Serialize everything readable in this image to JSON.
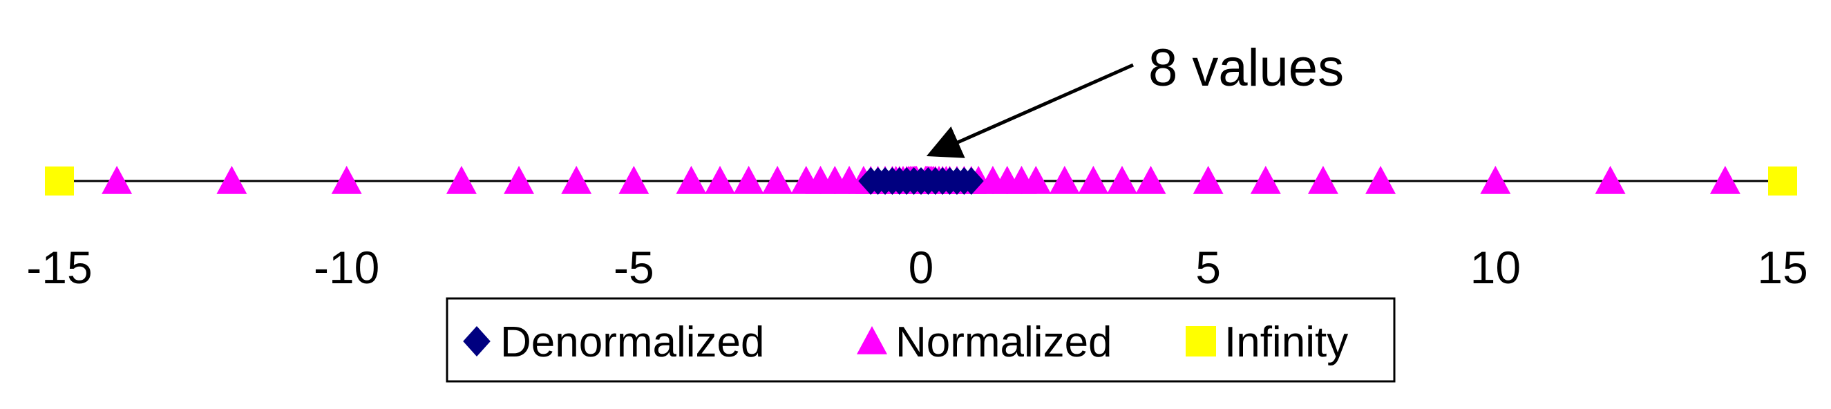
{
  "chart_data": {
    "type": "scatter",
    "xlim": [
      -15,
      15
    ],
    "ticks": [
      "-15",
      "-10",
      "-5",
      "0",
      "5",
      "10",
      "15"
    ],
    "annotation": {
      "text": "8 values",
      "target_x": 0
    },
    "legend": {
      "placement": "bottom-center"
    },
    "series": [
      {
        "name": "Denormalized",
        "marker": "diamond",
        "color": "#000080",
        "x": [
          -0.875,
          -0.75,
          -0.625,
          -0.5,
          -0.375,
          -0.25,
          -0.125,
          0,
          0.125,
          0.25,
          0.375,
          0.5,
          0.625,
          0.75,
          0.875
        ]
      },
      {
        "name": "Normalized",
        "marker": "triangle",
        "color": "#ff00ff",
        "x": [
          -14,
          -12,
          -10,
          -8,
          -7,
          -6,
          -5,
          -4,
          -3.5,
          -3,
          -2.5,
          -2,
          -1.75,
          -1.5,
          -1.25,
          -1,
          -0.875,
          -0.75,
          -0.625,
          -0.5,
          -0.4375,
          -0.375,
          -0.3125,
          -0.25,
          -0.21875,
          -0.1875,
          -0.15625,
          -0.125,
          -0.109375,
          -0.09375,
          -0.078125,
          0.078125,
          0.09375,
          0.109375,
          0.125,
          0.15625,
          0.1875,
          0.21875,
          0.25,
          0.3125,
          0.375,
          0.4375,
          0.5,
          0.625,
          0.75,
          0.875,
          1,
          1.25,
          1.5,
          1.75,
          2,
          2.5,
          3,
          3.5,
          4,
          5,
          6,
          7,
          8,
          10,
          12,
          14
        ]
      },
      {
        "name": "Infinity",
        "marker": "square",
        "color": "#ffff00",
        "x": [
          -15,
          15
        ]
      }
    ]
  }
}
